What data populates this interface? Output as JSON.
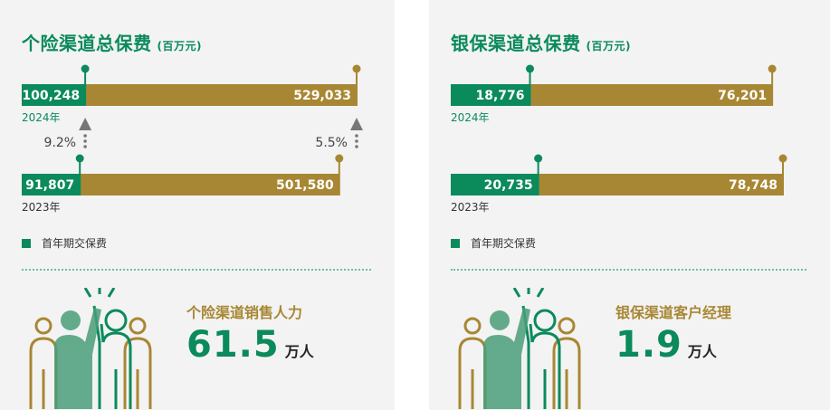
{
  "colors": {
    "green": "#0b8a5c",
    "gold": "#a88734",
    "gray": "#777777"
  },
  "legend": {
    "label": "首年期交保费"
  },
  "panels": [
    {
      "title": "个险渠道总保费",
      "unit": "(百万元)",
      "stat": {
        "label": "个险渠道销售人力",
        "value": "61.5",
        "unit": "万人"
      }
    },
    {
      "title": "银保渠道总保费",
      "unit": "(百万元)",
      "stat": {
        "label": "银保渠道客户经理",
        "value": "1.9",
        "unit": "万人"
      }
    }
  ],
  "chart_data": [
    {
      "type": "bar",
      "title": "个险渠道总保费",
      "subtitle": "(百万元)",
      "categories": [
        "2024年",
        "2023年"
      ],
      "series": [
        {
          "name": "首年期交保费",
          "values": [
            100248,
            91807
          ],
          "labels": [
            "100,248",
            "91,807"
          ]
        },
        {
          "name": "",
          "values": [
            529033,
            501580
          ],
          "labels": [
            "529,033",
            "501,580"
          ],
          "is_total": true
        }
      ],
      "growth": [
        {
          "value": "9.2%",
          "series": "首年期交保费"
        },
        {
          "value": "5.5%",
          "series": "total"
        }
      ]
    },
    {
      "type": "bar",
      "title": "银保渠道总保费",
      "subtitle": "(百万元)",
      "categories": [
        "2024年",
        "2023年"
      ],
      "series": [
        {
          "name": "首年期交保费",
          "values": [
            18776,
            20735
          ],
          "labels": [
            "18,776",
            "20,735"
          ]
        },
        {
          "name": "",
          "values": [
            76201,
            78748
          ],
          "labels": [
            "76,201",
            "78,748"
          ],
          "is_total": true
        }
      ],
      "growth": []
    }
  ]
}
